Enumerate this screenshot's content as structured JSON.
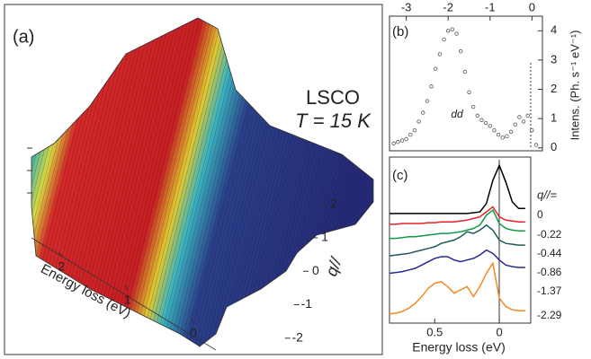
{
  "chart_data": [
    {
      "type": "surface",
      "panel_label": "(a)",
      "annotations": [
        "LSCO",
        "T = 15 K"
      ],
      "x_label": "Energy loss (eV)",
      "xlim": [
        -0.3,
        2.7
      ],
      "xticks": [
        2,
        1,
        0
      ],
      "y_label": "q//",
      "ylim": [
        -2.3,
        2.5
      ],
      "yticks": [
        2,
        1,
        0,
        -1,
        -2
      ]
    },
    {
      "type": "scatter",
      "panel_label": "(b)",
      "annotation": "dd",
      "y_label": "Intens. (Ph. s⁻¹ eV⁻¹)",
      "xlim": [
        -3.4,
        0.25
      ],
      "xticks": [
        -3,
        -2,
        -1,
        0
      ],
      "ylim": [
        -0.1,
        4.5
      ],
      "yticks": [
        0,
        1,
        2,
        3,
        4
      ],
      "color": "#555555",
      "x": [
        -3.3,
        -3.2,
        -3.1,
        -3.0,
        -2.9,
        -2.8,
        -2.7,
        -2.6,
        -2.5,
        -2.4,
        -2.3,
        -2.2,
        -2.1,
        -2.0,
        -1.9,
        -1.8,
        -1.7,
        -1.6,
        -1.5,
        -1.4,
        -1.3,
        -1.2,
        -1.1,
        -1.0,
        -0.9,
        -0.8,
        -0.7,
        -0.6,
        -0.5,
        -0.4,
        -0.3,
        -0.2,
        -0.1,
        0,
        0.1
      ],
      "values": [
        0.15,
        0.2,
        0.25,
        0.3,
        0.45,
        0.6,
        0.9,
        1.2,
        1.6,
        2.1,
        2.7,
        3.2,
        3.7,
        4.0,
        4.05,
        3.9,
        3.3,
        2.6,
        1.9,
        1.4,
        1.1,
        0.95,
        0.85,
        0.75,
        0.6,
        0.45,
        0.35,
        0.4,
        0.55,
        0.8,
        1.05,
        0.9,
        1.1,
        0.6,
        0.1
      ]
    },
    {
      "type": "line",
      "panel_label": "(c)",
      "x_label": "Energy loss (eV)",
      "legend_title": "q//=",
      "xlim": [
        0.85,
        -0.25
      ],
      "xticks": [
        0.5,
        0
      ],
      "ylim": [
        0,
        10
      ],
      "x": [
        0.85,
        0.8,
        0.75,
        0.7,
        0.65,
        0.6,
        0.55,
        0.5,
        0.45,
        0.4,
        0.35,
        0.3,
        0.25,
        0.2,
        0.15,
        0.1,
        0.05,
        0,
        -0.05,
        -0.1,
        -0.15,
        -0.2
      ],
      "series": [
        {
          "name": "0",
          "color": "#000000",
          "values": [
            6.6,
            6.6,
            6.6,
            6.6,
            6.6,
            6.6,
            6.6,
            6.6,
            6.6,
            6.6,
            6.6,
            6.6,
            6.6,
            6.65,
            6.7,
            7.2,
            8.6,
            9.5,
            8.5,
            7.3,
            6.9,
            6.9
          ]
        },
        {
          "name": "-0.22",
          "color": "#e8202a",
          "values": [
            5.95,
            5.95,
            6.0,
            6.0,
            6.0,
            6.0,
            6.05,
            6.05,
            6.1,
            6.1,
            6.1,
            6.15,
            6.2,
            6.3,
            6.4,
            6.7,
            7.0,
            6.4,
            6.2,
            6.15,
            6.1,
            6.1
          ]
        },
        {
          "name": "-0.44",
          "color": "#0e9a48",
          "values": [
            5.1,
            5.1,
            5.15,
            5.2,
            5.2,
            5.25,
            5.3,
            5.35,
            5.4,
            5.4,
            5.45,
            5.5,
            5.6,
            5.7,
            5.9,
            6.5,
            6.8,
            6.0,
            5.7,
            5.6,
            5.55,
            5.55
          ]
        },
        {
          "name": "-0.86",
          "color": "#1f5a5a",
          "values": [
            4.05,
            4.1,
            4.15,
            4.2,
            4.3,
            4.4,
            4.5,
            4.6,
            4.8,
            4.9,
            5.0,
            5.2,
            5.5,
            5.4,
            5.6,
            5.9,
            5.6,
            5.0,
            4.8,
            4.75,
            4.7,
            4.7
          ]
        },
        {
          "name": "-1.37",
          "color": "#262a8c",
          "values": [
            3.0,
            3.05,
            3.1,
            3.2,
            3.3,
            3.5,
            3.7,
            3.9,
            4.0,
            4.0,
            3.8,
            3.7,
            3.8,
            3.9,
            4.1,
            4.4,
            4.2,
            3.8,
            3.5,
            3.4,
            3.35,
            3.35
          ]
        },
        {
          "name": "-2.29",
          "color": "#f7871e",
          "values": [
            0.55,
            0.6,
            0.7,
            0.9,
            1.2,
            1.6,
            2.1,
            2.4,
            2.5,
            2.2,
            1.8,
            2.0,
            2.2,
            1.6,
            2.2,
            3.0,
            3.6,
            1.5,
            1.0,
            0.8,
            0.75,
            0.75
          ]
        }
      ]
    }
  ]
}
